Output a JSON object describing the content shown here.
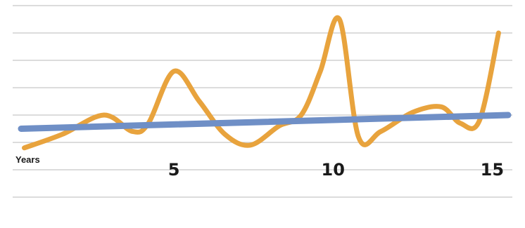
{
  "chart_data": {
    "type": "line",
    "xlabel": "Years",
    "ylabel": "",
    "title": "",
    "x_ticks": [
      5,
      10,
      15
    ],
    "xlim": [
      0.2,
      15.5
    ],
    "ylim": [
      -5,
      3
    ],
    "y_grid_values": [
      -4,
      -3,
      -2,
      -1,
      0,
      1,
      2,
      3
    ],
    "grid": "horizontal",
    "legend": "none",
    "series": [
      {
        "style": "smooth-line",
        "color": "#e8a33d",
        "x": [
          0.3,
          1.5,
          2.8,
          3.7,
          4.2,
          5.0,
          5.8,
          6.6,
          7.4,
          8.3,
          9.0,
          9.6,
          10.2,
          10.8,
          11.5,
          12.5,
          13.4,
          14.0,
          14.6,
          15.2
        ],
        "y": [
          -2.2,
          -1.7,
          -1.0,
          -1.6,
          -1.3,
          0.6,
          -0.5,
          -1.7,
          -2.1,
          -1.4,
          -1.0,
          0.6,
          2.5,
          -1.8,
          -1.6,
          -0.9,
          -0.7,
          -1.3,
          -1.2,
          2.0
        ]
      },
      {
        "style": "trend-line",
        "color": "#6f8fc6",
        "x": [
          0.2,
          15.5
        ],
        "y": [
          -1.5,
          -1.0
        ]
      }
    ]
  }
}
